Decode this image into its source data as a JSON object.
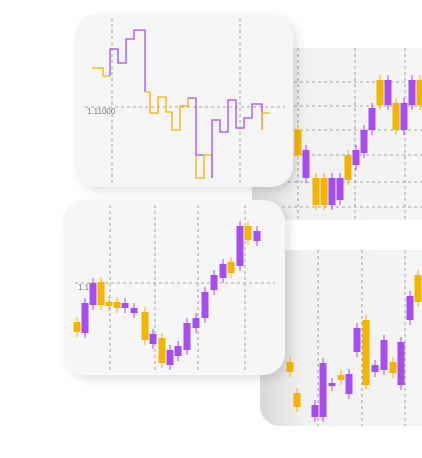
{
  "cards": [
    {
      "axis_label": "1.11000"
    },
    {
      "axis_label": "1.1"
    }
  ]
}
